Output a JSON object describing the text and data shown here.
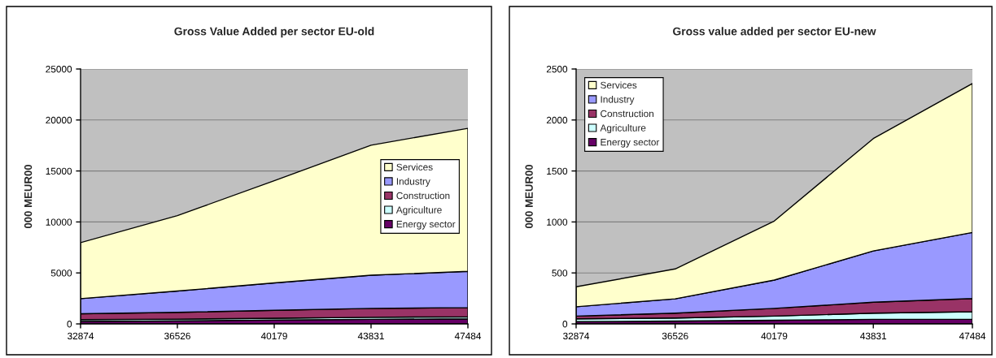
{
  "chart_data": [
    {
      "type": "area",
      "stacked": true,
      "title": "Gross Value Added per sector EU-old",
      "ylabel": "000 MEUR00",
      "x": [
        32874,
        36526,
        40179,
        43831,
        47484
      ],
      "xlim": [
        32874,
        47484
      ],
      "xticks": [
        32874,
        36526,
        40179,
        43831,
        47484
      ],
      "ylim": [
        0,
        25000
      ],
      "yticks": [
        0,
        5000,
        10000,
        15000,
        20000,
        25000
      ],
      "grid": "y",
      "legend": "right",
      "series": [
        {
          "name": "Energy sector",
          "color": "#660066",
          "values": [
            250,
            300,
            380,
            450,
            500
          ]
        },
        {
          "name": "Agriculture",
          "color": "#ccffff",
          "values": [
            170,
            170,
            180,
            200,
            200
          ]
        },
        {
          "name": "Construction",
          "color": "#993366",
          "values": [
            580,
            660,
            770,
            870,
            900
          ]
        },
        {
          "name": "Industry",
          "color": "#9999ff",
          "values": [
            1480,
            2090,
            2690,
            3260,
            3550
          ]
        },
        {
          "name": "Services",
          "color": "#ffffcc",
          "values": [
            5490,
            7400,
            10020,
            12750,
            14030
          ]
        }
      ]
    },
    {
      "type": "area",
      "stacked": true,
      "title": "Gross value added per sector EU-new",
      "ylabel": "000 MEUR00",
      "x": [
        32874,
        36526,
        40179,
        43831,
        47484
      ],
      "xlim": [
        32874,
        47484
      ],
      "xticks": [
        32874,
        36526,
        40179,
        43831,
        47484
      ],
      "ylim": [
        0,
        2500
      ],
      "yticks": [
        0,
        500,
        1000,
        1500,
        2000,
        2500
      ],
      "grid": "y",
      "legend": "top left",
      "series": [
        {
          "name": "Energy sector",
          "color": "#660066",
          "values": [
            22,
            28,
            36,
            45,
            47
          ]
        },
        {
          "name": "Agriculture",
          "color": "#ccffff",
          "values": [
            28,
            30,
            41,
            60,
            72
          ]
        },
        {
          "name": "Construction",
          "color": "#993366",
          "values": [
            27,
            47,
            75,
            108,
            130
          ]
        },
        {
          "name": "Industry",
          "color": "#9999ff",
          "values": [
            91,
            141,
            278,
            503,
            648
          ]
        },
        {
          "name": "Services",
          "color": "#ffffcc",
          "values": [
            196,
            293,
            579,
            1102,
            1460
          ]
        }
      ]
    }
  ]
}
